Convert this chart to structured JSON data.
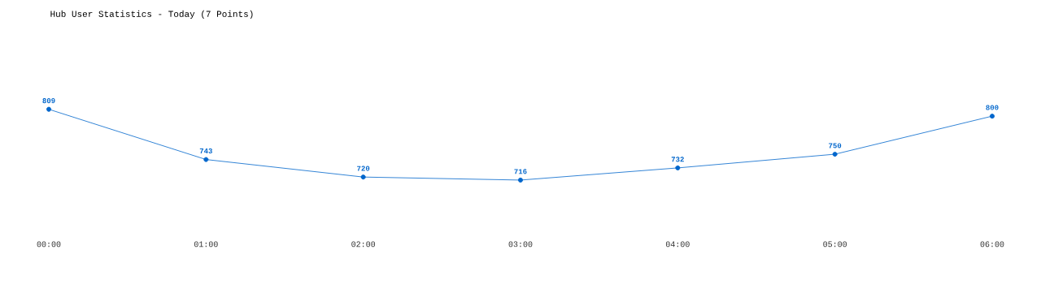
{
  "chart_data": {
    "type": "line",
    "title": "Hub User Statistics - Today (7 Points)",
    "categories": [
      "00:00",
      "01:00",
      "02:00",
      "03:00",
      "04:00",
      "05:00",
      "06:00"
    ],
    "values": [
      809,
      743,
      720,
      716,
      732,
      750,
      800
    ],
    "color": "#0066cc",
    "marker": "circle",
    "data_labels": true
  }
}
